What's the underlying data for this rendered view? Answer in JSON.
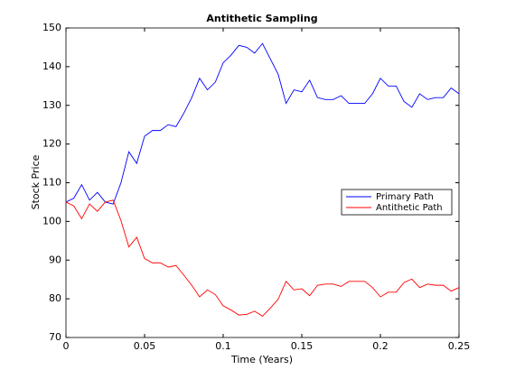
{
  "chart_data": {
    "type": "line",
    "title": "Antithetic Sampling",
    "xlabel": "Time (Years)",
    "ylabel": "Stock Price",
    "x": [
      0,
      0.005,
      0.01,
      0.015,
      0.02,
      0.025,
      0.03,
      0.035,
      0.04,
      0.045,
      0.05,
      0.055,
      0.06,
      0.065,
      0.07,
      0.075,
      0.08,
      0.085,
      0.09,
      0.095,
      0.1,
      0.105,
      0.11,
      0.115,
      0.12,
      0.125,
      0.13,
      0.135,
      0.14,
      0.145,
      0.15,
      0.155,
      0.16,
      0.165,
      0.17,
      0.175,
      0.18,
      0.185,
      0.19,
      0.195,
      0.2,
      0.205,
      0.21,
      0.215,
      0.22,
      0.225,
      0.23,
      0.235,
      0.24,
      0.245,
      0.25
    ],
    "series": [
      {
        "name": "Primary Path",
        "color": "#0000ff",
        "values": [
          105,
          106,
          109.5,
          105.5,
          107.5,
          105,
          104.5,
          110,
          118,
          115,
          122,
          123.5,
          123.5,
          125,
          124.5,
          128,
          132,
          137,
          134,
          136,
          141,
          143,
          145.5,
          145,
          143.5,
          146,
          142,
          138,
          130.5,
          134,
          133.5,
          136.5,
          132,
          131.5,
          131.5,
          132.5,
          130.5,
          130.5,
          130.5,
          133,
          137,
          135,
          135,
          131,
          129.5,
          133,
          131.5,
          132,
          132,
          134.5,
          133
        ]
      },
      {
        "name": "Antithetic Path",
        "color": "#ff0000",
        "values": [
          105,
          104,
          100.7,
          104.5,
          102.6,
          105,
          105.5,
          100.2,
          93.4,
          95.9,
          90.4,
          89.3,
          89.3,
          88.2,
          88.6,
          86.1,
          83.5,
          80.5,
          82.3,
          81.1,
          78.2,
          77.1,
          75.8,
          76,
          76.8,
          75.5,
          77.6,
          79.9,
          84.5,
          82.3,
          82.6,
          80.8,
          83.5,
          83.8,
          83.8,
          83.2,
          84.5,
          84.5,
          84.5,
          82.9,
          80.5,
          81.7,
          81.7,
          84.2,
          85.1,
          82.9,
          83.8,
          83.5,
          83.5,
          82,
          82.9
        ]
      }
    ],
    "xlim": [
      0,
      0.25
    ],
    "xticks": [
      0,
      0.05,
      0.1,
      0.15,
      0.2,
      0.25
    ],
    "ylim": [
      70,
      150
    ],
    "yticks": [
      70,
      80,
      90,
      100,
      110,
      120,
      130,
      140,
      150
    ],
    "legend": "east"
  }
}
